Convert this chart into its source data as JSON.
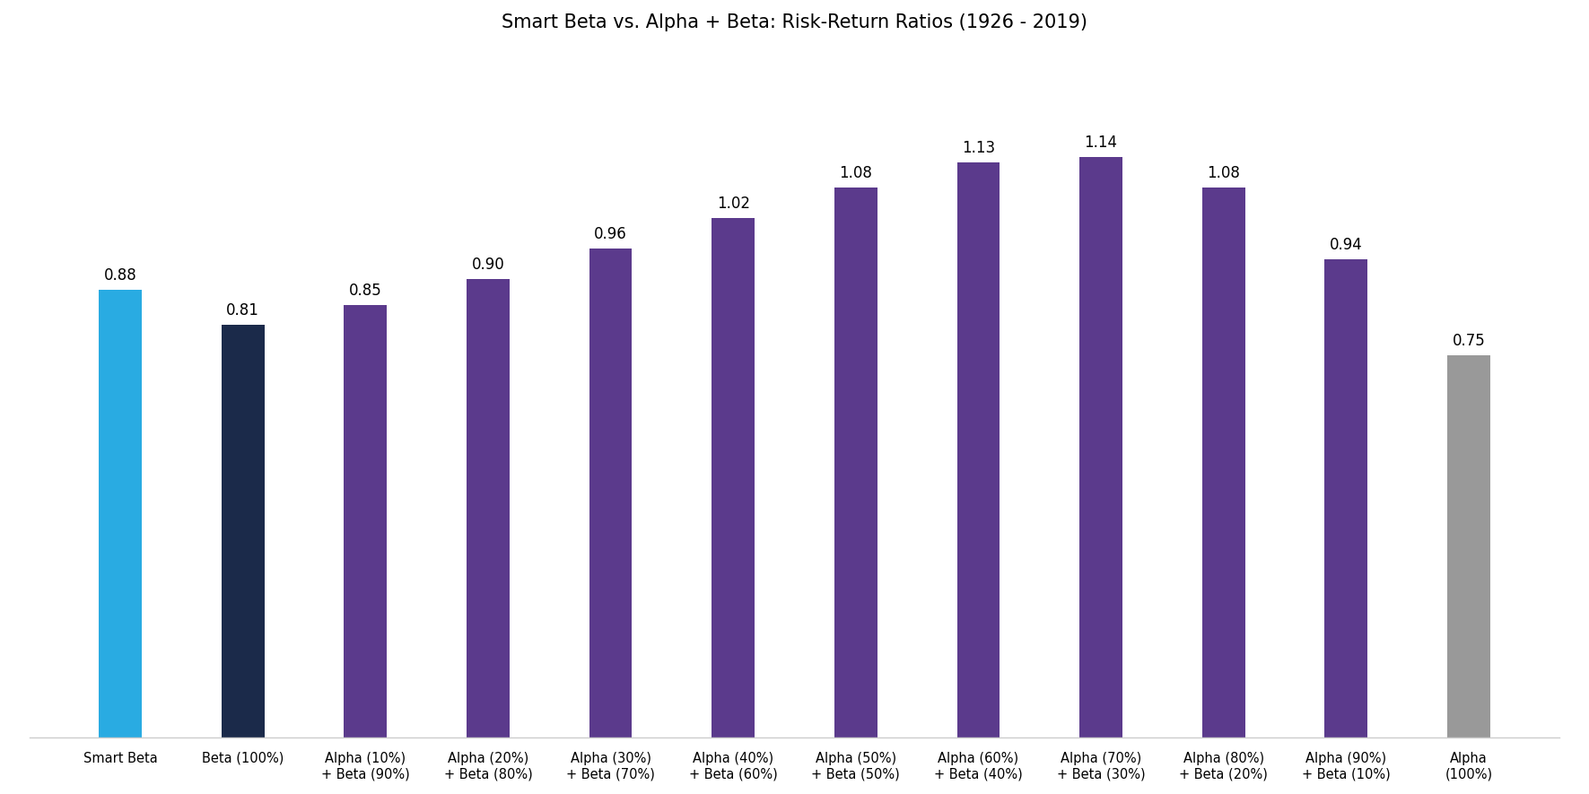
{
  "title": "Smart Beta vs. Alpha + Beta: Risk-Return Ratios (1926 - 2019)",
  "categories": [
    "Smart Beta",
    "Beta (100%)",
    "Alpha (10%)\n+ Beta (90%)",
    "Alpha (20%)\n+ Beta (80%)",
    "Alpha (30%)\n+ Beta (70%)",
    "Alpha (40%)\n+ Beta (60%)",
    "Alpha (50%)\n+ Beta (50%)",
    "Alpha (60%)\n+ Beta (40%)",
    "Alpha (70%)\n+ Beta (30%)",
    "Alpha (80%)\n+ Beta (20%)",
    "Alpha (90%)\n+ Beta (10%)",
    "Alpha\n(100%)"
  ],
  "values": [
    0.88,
    0.81,
    0.85,
    0.9,
    0.96,
    1.02,
    1.08,
    1.13,
    1.14,
    1.08,
    0.94,
    0.75
  ],
  "bar_colors": [
    "#29ABE2",
    "#1B2A4A",
    "#5B3A8C",
    "#5B3A8C",
    "#5B3A8C",
    "#5B3A8C",
    "#5B3A8C",
    "#5B3A8C",
    "#5B3A8C",
    "#5B3A8C",
    "#5B3A8C",
    "#999999"
  ],
  "ylim": [
    0,
    1.35
  ],
  "background_color": "#ffffff",
  "title_fontsize": 15,
  "tick_fontsize": 10.5,
  "value_fontsize": 12,
  "bar_width": 0.35
}
